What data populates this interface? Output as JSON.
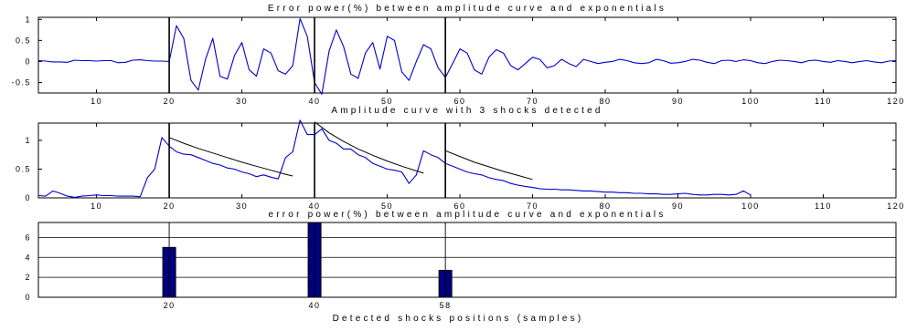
{
  "chart_data": [
    {
      "type": "line",
      "title": "Error power(%) between amplitude curve and exponentials",
      "xlim": [
        2,
        120
      ],
      "ylim": [
        -0.75,
        1.05
      ],
      "xticks": [
        "10",
        "20",
        "30",
        "40",
        "50",
        "60",
        "70",
        "80",
        "90",
        "100",
        "110",
        "120"
      ],
      "yticks": [
        "-0.5",
        "0",
        "0.5",
        "1"
      ],
      "shock_lines": [
        20,
        40,
        58
      ],
      "series": [
        {
          "color": "#0000cc",
          "x": [
            2,
            3,
            4,
            5,
            6,
            7,
            8,
            9,
            10,
            11,
            12,
            13,
            14,
            15,
            16,
            17,
            18,
            19,
            20,
            21,
            22,
            23,
            24,
            25,
            26,
            27,
            28,
            29,
            30,
            31,
            32,
            33,
            34,
            35,
            36,
            37,
            38,
            39,
            40,
            41,
            42,
            43,
            44,
            45,
            46,
            47,
            48,
            49,
            50,
            51,
            52,
            53,
            54,
            55,
            56,
            57,
            58,
            59,
            60,
            61,
            62,
            63,
            64,
            65,
            66,
            67,
            68,
            69,
            70,
            71,
            72,
            73,
            74,
            75,
            76,
            77,
            78,
            79,
            80,
            81,
            82,
            83,
            84,
            85,
            86,
            87,
            88,
            89,
            90,
            91,
            92,
            93,
            94,
            95,
            96,
            97,
            98,
            99,
            100,
            101,
            102,
            103,
            104,
            105,
            106,
            107,
            108,
            109,
            110,
            111,
            112,
            113,
            114,
            115,
            116,
            117,
            118,
            119,
            120
          ],
          "y": [
            0.02,
            0.01,
            -0.01,
            -0.01,
            -0.02,
            0.03,
            0.02,
            0.02,
            0.01,
            0.02,
            0.02,
            -0.03,
            -0.02,
            0.03,
            0.04,
            0.02,
            0.01,
            0.01,
            0.0,
            0.85,
            0.55,
            -0.45,
            -0.68,
            0.05,
            0.55,
            -0.35,
            -0.42,
            0.15,
            0.45,
            -0.2,
            -0.35,
            0.3,
            0.2,
            -0.22,
            -0.3,
            -0.1,
            1.02,
            0.6,
            -0.5,
            -0.78,
            0.25,
            0.75,
            0.35,
            -0.3,
            -0.4,
            0.2,
            0.45,
            -0.18,
            0.6,
            0.5,
            -0.25,
            -0.45,
            0.0,
            0.4,
            0.3,
            -0.15,
            -0.38,
            -0.05,
            0.3,
            0.2,
            -0.2,
            -0.3,
            0.1,
            0.28,
            0.2,
            -0.1,
            -0.2,
            -0.05,
            0.1,
            0.05,
            -0.15,
            -0.1,
            0.05,
            -0.05,
            -0.12,
            0.05,
            0.0,
            -0.05,
            -0.02,
            0.0,
            0.05,
            0.02,
            -0.03,
            -0.05,
            -0.03,
            0.05,
            0.02,
            -0.04,
            -0.03,
            0.0,
            0.05,
            0.03,
            -0.02,
            -0.05,
            0.02,
            0.03,
            0.0,
            0.04,
            0.02,
            -0.03,
            -0.05,
            0.0,
            0.03,
            0.02,
            0.0,
            -0.03,
            0.02,
            0.03,
            0.0,
            -0.02,
            0.02,
            0.0,
            -0.03,
            0.0,
            0.02,
            -0.01,
            -0.03,
            0.01,
            0.02
          ]
        }
      ]
    },
    {
      "type": "line",
      "title": "Amplitude curve with 3 shocks detected",
      "xlim": [
        2,
        120
      ],
      "ylim": [
        0,
        1.3
      ],
      "xticks": [
        "10",
        "20",
        "30",
        "40",
        "50",
        "60",
        "70",
        "80",
        "90",
        "100",
        "110",
        "120"
      ],
      "yticks": [
        "0",
        "0.5",
        "1"
      ],
      "shock_lines": [
        20,
        40,
        58
      ],
      "series": [
        {
          "color": "#0000cc",
          "x": [
            2,
            3,
            4,
            5,
            6,
            7,
            8,
            9,
            10,
            11,
            12,
            13,
            14,
            15,
            16,
            17,
            18,
            19,
            20,
            21,
            22,
            23,
            24,
            25,
            26,
            27,
            28,
            29,
            30,
            31,
            32,
            33,
            34,
            35,
            36,
            37,
            38,
            39,
            40,
            41,
            42,
            43,
            44,
            45,
            46,
            47,
            48,
            49,
            50,
            51,
            52,
            53,
            54,
            55,
            56,
            57,
            58,
            59,
            60,
            61,
            62,
            63,
            64,
            65,
            66,
            67,
            68,
            69,
            70,
            71,
            72,
            73,
            74,
            75,
            76,
            77,
            78,
            79,
            80,
            81,
            82,
            83,
            84,
            85,
            86,
            87,
            88,
            89,
            90,
            91,
            92,
            93,
            94,
            95,
            96,
            97,
            98,
            99,
            100
          ],
          "y": [
            0.04,
            0.03,
            0.12,
            0.08,
            0.03,
            0.01,
            0.03,
            0.04,
            0.05,
            0.04,
            0.04,
            0.03,
            0.03,
            0.03,
            0.02,
            0.35,
            0.5,
            1.05,
            0.9,
            0.8,
            0.76,
            0.75,
            0.7,
            0.65,
            0.6,
            0.57,
            0.52,
            0.5,
            0.45,
            0.42,
            0.37,
            0.4,
            0.36,
            0.33,
            0.7,
            0.8,
            1.35,
            1.1,
            1.1,
            1.2,
            1.0,
            0.95,
            0.85,
            0.85,
            0.75,
            0.7,
            0.6,
            0.55,
            0.5,
            0.48,
            0.45,
            0.25,
            0.4,
            0.82,
            0.75,
            0.7,
            0.6,
            0.55,
            0.5,
            0.45,
            0.42,
            0.4,
            0.35,
            0.32,
            0.3,
            0.25,
            0.22,
            0.2,
            0.18,
            0.16,
            0.15,
            0.15,
            0.14,
            0.14,
            0.13,
            0.12,
            0.12,
            0.11,
            0.1,
            0.1,
            0.09,
            0.09,
            0.08,
            0.08,
            0.07,
            0.07,
            0.06,
            0.06,
            0.07,
            0.08,
            0.06,
            0.05,
            0.05,
            0.06,
            0.06,
            0.05,
            0.06,
            0.12,
            0.05
          ]
        },
        {
          "color": "#000000",
          "x": [
            20,
            22,
            24,
            26,
            28,
            30,
            32,
            34,
            36,
            37
          ],
          "y": [
            1.05,
            0.95,
            0.86,
            0.78,
            0.7,
            0.62,
            0.55,
            0.48,
            0.41,
            0.38
          ]
        },
        {
          "color": "#000000",
          "x": [
            40,
            42,
            44,
            46,
            48,
            50,
            52,
            54,
            55
          ],
          "y": [
            1.32,
            1.13,
            0.98,
            0.85,
            0.74,
            0.64,
            0.55,
            0.47,
            0.43
          ]
        },
        {
          "color": "#000000",
          "x": [
            58,
            60,
            62,
            64,
            66,
            68,
            70
          ],
          "y": [
            0.82,
            0.72,
            0.62,
            0.54,
            0.46,
            0.39,
            0.32
          ]
        }
      ]
    },
    {
      "type": "bar",
      "title": "error power(%) between amplitude curve and exponentials",
      "xlabel": "Detected shocks positions (samples)",
      "xlim": [
        2,
        120
      ],
      "ylim": [
        0,
        7.5
      ],
      "xticks": [
        "20",
        "40",
        "58"
      ],
      "yticks": [
        "0",
        "2",
        "4",
        "6"
      ],
      "shock_lines": [
        20,
        40,
        58
      ],
      "color": "#000080",
      "x": [
        20,
        40,
        58
      ],
      "values": [
        5.0,
        7.5,
        2.7
      ]
    }
  ]
}
